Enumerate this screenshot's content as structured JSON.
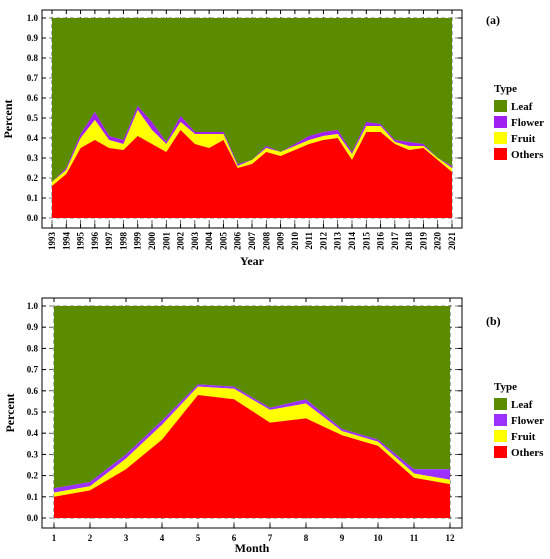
{
  "chart_data": [
    {
      "type": "area",
      "stacked": true,
      "panel_label": "(a)",
      "xlabel": "Year",
      "ylabel": "Percent",
      "ylim": [
        0,
        1.0
      ],
      "yticks": [
        "0.0",
        "0.1",
        "0.2",
        "0.3",
        "0.4",
        "0.5",
        "0.6",
        "0.7",
        "0.8",
        "0.9",
        "1.0"
      ],
      "x": [
        "1993",
        "1994",
        "1995",
        "1996",
        "1997",
        "1998",
        "1999",
        "2000",
        "2001",
        "2002",
        "2003",
        "2004",
        "2005",
        "2006",
        "2007",
        "2008",
        "2009",
        "2010",
        "2011",
        "2012",
        "2013",
        "2014",
        "2015",
        "2016",
        "2017",
        "2018",
        "2019",
        "2020",
        "2021"
      ],
      "legend_title": "Type",
      "series": [
        {
          "name": "Others",
          "color": "#ff0000",
          "values": [
            0.16,
            0.22,
            0.35,
            0.39,
            0.35,
            0.34,
            0.41,
            0.37,
            0.33,
            0.44,
            0.37,
            0.35,
            0.39,
            0.25,
            0.27,
            0.33,
            0.31,
            0.34,
            0.37,
            0.39,
            0.4,
            0.29,
            0.43,
            0.43,
            0.37,
            0.34,
            0.35,
            0.29,
            0.23
          ]
        },
        {
          "name": "Fruit",
          "color": "#ffff00",
          "values": [
            0.02,
            0.02,
            0.05,
            0.1,
            0.04,
            0.03,
            0.13,
            0.07,
            0.04,
            0.04,
            0.05,
            0.07,
            0.03,
            0.01,
            0.02,
            0.02,
            0.02,
            0.02,
            0.02,
            0.02,
            0.02,
            0.03,
            0.03,
            0.03,
            0.01,
            0.02,
            0.01,
            0.01,
            0.02
          ]
        },
        {
          "name": "Flower",
          "color": "#a020f0",
          "values": [
            0.0,
            0.01,
            0.02,
            0.04,
            0.02,
            0.02,
            0.02,
            0.04,
            0.01,
            0.03,
            0.01,
            0.01,
            0.01,
            0.01,
            0.0,
            0.01,
            0.0,
            0.01,
            0.02,
            0.02,
            0.02,
            0.01,
            0.02,
            0.01,
            0.01,
            0.02,
            0.01,
            0.0,
            0.01
          ]
        },
        {
          "name": "Leaf",
          "color": "#5b8c00",
          "values": [
            0.82,
            0.75,
            0.58,
            0.47,
            0.59,
            0.61,
            0.44,
            0.52,
            0.62,
            0.49,
            0.57,
            0.57,
            0.57,
            0.73,
            0.71,
            0.64,
            0.67,
            0.63,
            0.59,
            0.57,
            0.56,
            0.67,
            0.52,
            0.53,
            0.61,
            0.62,
            0.63,
            0.7,
            0.74
          ]
        }
      ],
      "grid": true,
      "legend_position": "right"
    },
    {
      "type": "area",
      "stacked": true,
      "panel_label": "(b)",
      "xlabel": "Month",
      "ylabel": "Percent",
      "ylim": [
        0,
        1.0
      ],
      "yticks": [
        "0.0",
        "0.1",
        "0.2",
        "0.3",
        "0.4",
        "0.5",
        "0.6",
        "0.7",
        "0.8",
        "0.9",
        "1.0"
      ],
      "x": [
        "1",
        "2",
        "3",
        "4",
        "5",
        "6",
        "7",
        "8",
        "9",
        "10",
        "11",
        "12"
      ],
      "legend_title": "Type",
      "series": [
        {
          "name": "Others",
          "color": "#ff0000",
          "values": [
            0.1,
            0.13,
            0.23,
            0.37,
            0.58,
            0.56,
            0.45,
            0.47,
            0.39,
            0.34,
            0.19,
            0.16
          ]
        },
        {
          "name": "Fruit",
          "color": "#ffff00",
          "values": [
            0.02,
            0.02,
            0.05,
            0.07,
            0.04,
            0.05,
            0.06,
            0.07,
            0.02,
            0.02,
            0.02,
            0.02
          ]
        },
        {
          "name": "Flower",
          "color": "#9b30ff",
          "values": [
            0.02,
            0.02,
            0.02,
            0.02,
            0.01,
            0.01,
            0.01,
            0.02,
            0.01,
            0.01,
            0.02,
            0.05
          ]
        },
        {
          "name": "Leaf",
          "color": "#5b8c00",
          "values": [
            0.86,
            0.83,
            0.7,
            0.54,
            0.37,
            0.38,
            0.48,
            0.44,
            0.58,
            0.63,
            0.77,
            0.77
          ]
        }
      ],
      "grid": true,
      "legend_position": "right"
    }
  ]
}
